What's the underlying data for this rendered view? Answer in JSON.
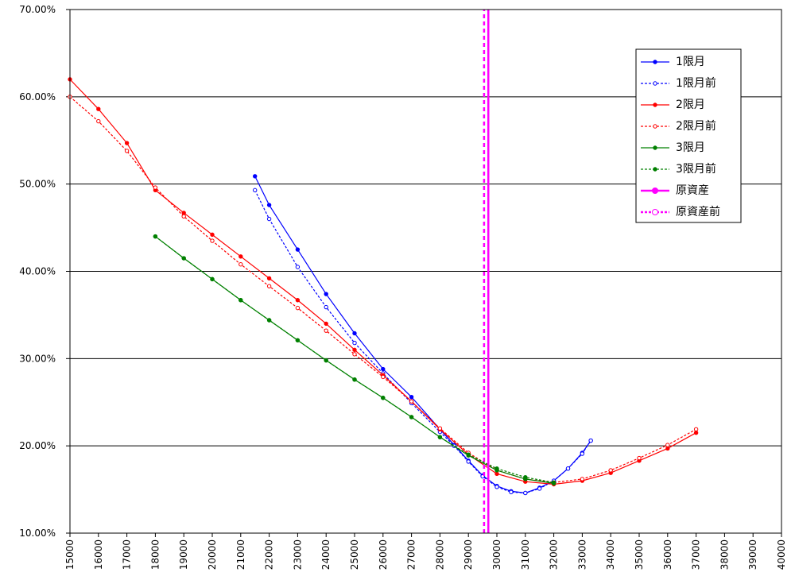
{
  "chart_data": {
    "type": "line",
    "xlim": [
      15000,
      40000
    ],
    "xticks": [
      15000,
      16000,
      17000,
      18000,
      19000,
      20000,
      21000,
      22000,
      23000,
      24000,
      25000,
      26000,
      27000,
      28000,
      29000,
      30000,
      31000,
      32000,
      33000,
      34000,
      35000,
      36000,
      37000,
      38000,
      39000,
      40000
    ],
    "ylim": [
      10,
      70
    ],
    "yticks": [
      {
        "value": 10,
        "label": "10.00%"
      },
      {
        "value": 20,
        "label": "20.00%"
      },
      {
        "value": 30,
        "label": "30.00%"
      },
      {
        "value": 40,
        "label": "40.00%"
      },
      {
        "value": 50,
        "label": "50.00%"
      },
      {
        "value": 60,
        "label": "60.00%"
      },
      {
        "value": 70,
        "label": "70.00%"
      }
    ],
    "grid": true,
    "legend": "upper-right",
    "series": [
      {
        "name": "1限月",
        "color": "#0000ff",
        "dash": false,
        "marker": "filled",
        "x": [
          21500,
          22000,
          23000,
          24000,
          25000,
          26000,
          27000,
          28000,
          28500,
          29000,
          29500,
          30000,
          30500,
          31000,
          31500,
          32000,
          32500,
          33000,
          33300
        ],
        "values": [
          50.9,
          47.6,
          42.5,
          37.4,
          32.9,
          28.8,
          25.6,
          21.9,
          20.1,
          18.3,
          16.6,
          15.4,
          14.8,
          14.6,
          15.2,
          16.0,
          17.4,
          19.2,
          20.6
        ]
      },
      {
        "name": "1限月前",
        "color": "#0000ff",
        "dash": true,
        "marker": "hollow",
        "x": [
          21500,
          22000,
          23000,
          24000,
          25000,
          26000,
          27000,
          28000,
          28500,
          29000,
          29500,
          30000,
          30500,
          31000,
          31500,
          32000,
          32500,
          33000,
          33300
        ],
        "values": [
          49.3,
          46.0,
          40.5,
          35.9,
          31.8,
          28.3,
          24.9,
          21.6,
          20.0,
          18.2,
          16.5,
          15.3,
          14.7,
          14.6,
          15.1,
          16.0,
          17.4,
          19.1,
          20.6
        ]
      },
      {
        "name": "2限月",
        "color": "#ff0000",
        "dash": false,
        "marker": "filled",
        "x": [
          15000,
          16000,
          17000,
          18000,
          19000,
          20000,
          21000,
          22000,
          23000,
          24000,
          25000,
          26000,
          27000,
          28000,
          29000,
          30000,
          31000,
          32000,
          33000,
          34000,
          35000,
          36000,
          37000
        ],
        "values": [
          62.0,
          58.6,
          54.7,
          49.3,
          46.7,
          44.2,
          41.7,
          39.2,
          36.7,
          34.0,
          31.0,
          28.1,
          25.1,
          21.9,
          19.0,
          16.8,
          15.9,
          15.6,
          16.0,
          16.9,
          18.3,
          19.7,
          21.5
        ]
      },
      {
        "name": "2限月前",
        "color": "#ff0000",
        "dash": true,
        "marker": "hollow",
        "x": [
          15000,
          16000,
          17000,
          18000,
          19000,
          20000,
          21000,
          22000,
          23000,
          24000,
          25000,
          26000,
          27000,
          28000,
          29000,
          30000,
          31000,
          32000,
          33000,
          34000,
          35000,
          36000,
          37000
        ],
        "values": [
          60.0,
          57.2,
          53.8,
          49.6,
          46.3,
          43.5,
          40.8,
          38.3,
          35.8,
          33.2,
          30.5,
          27.9,
          25.1,
          22.0,
          19.2,
          17.2,
          16.2,
          15.8,
          16.2,
          17.2,
          18.6,
          20.1,
          21.9
        ]
      },
      {
        "name": "3限月",
        "color": "#008000",
        "dash": false,
        "marker": "filled",
        "x": [
          18000,
          19000,
          20000,
          21000,
          22000,
          23000,
          24000,
          25000,
          26000,
          27000,
          28000,
          29000,
          30000,
          31000,
          32000
        ],
        "values": [
          44.0,
          41.5,
          39.1,
          36.7,
          34.4,
          32.1,
          29.8,
          27.6,
          25.5,
          23.3,
          21.0,
          18.9,
          17.2,
          16.2,
          15.7
        ]
      },
      {
        "name": "3限月前",
        "color": "#008000",
        "dash": true,
        "marker": "filled",
        "x": [
          18000,
          19000,
          20000,
          21000,
          22000,
          23000,
          24000,
          25000,
          26000,
          27000,
          28000,
          29000,
          30000,
          31000,
          32000
        ],
        "values": [
          44.0,
          41.5,
          39.1,
          36.7,
          34.4,
          32.1,
          29.8,
          27.6,
          25.5,
          23.3,
          21.0,
          19.0,
          17.4,
          16.4,
          15.8
        ]
      },
      {
        "name": "原資産",
        "color": "#ff00ff",
        "dash": false,
        "marker": "none",
        "x": [
          29700,
          29700
        ],
        "values": [
          10,
          70
        ]
      },
      {
        "name": "原資産前",
        "color": "#ff00ff",
        "dash": true,
        "marker": "none",
        "x": [
          29550,
          29550
        ],
        "values": [
          10,
          70
        ]
      }
    ]
  }
}
